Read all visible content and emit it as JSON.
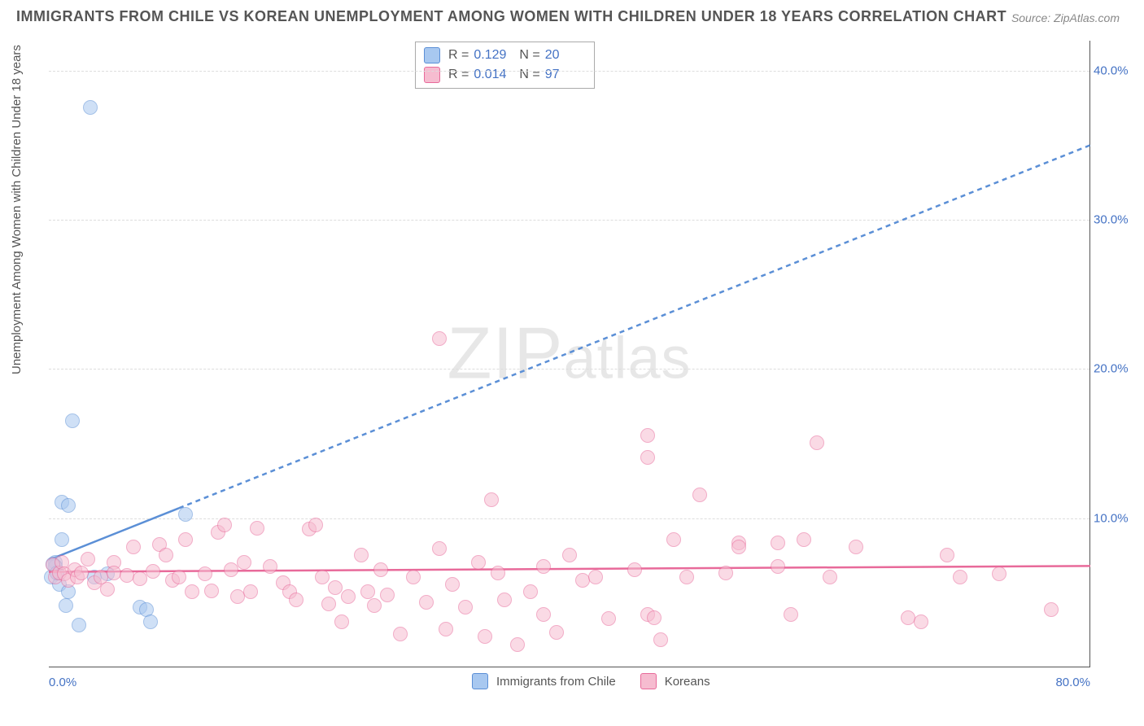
{
  "title": "IMMIGRANTS FROM CHILE VS KOREAN UNEMPLOYMENT AMONG WOMEN WITH CHILDREN UNDER 18 YEARS CORRELATION CHART",
  "source": "Source: ZipAtlas.com",
  "yaxis_label": "Unemployment Among Women with Children Under 18 years",
  "watermark": "ZIPatlas",
  "chart": {
    "type": "scatter",
    "xlim": [
      0,
      80
    ],
    "ylim": [
      0,
      42
    ],
    "xtick_labels": [
      "0.0%",
      "80.0%"
    ],
    "ytick_values": [
      10,
      20,
      30,
      40
    ],
    "ytick_labels": [
      "10.0%",
      "20.0%",
      "30.0%",
      "40.0%"
    ],
    "background_color": "#ffffff",
    "grid_color": "#dddddd",
    "axis_color": "#555555",
    "tick_label_color": "#4472c4",
    "marker_radius": 9,
    "marker_opacity": 0.55,
    "marker_border_width": 1.5,
    "series": [
      {
        "name": "Immigrants from Chile",
        "fill_color": "#a8c8f0",
        "border_color": "#5b8fd6",
        "R": "0.129",
        "N": "20",
        "trend": {
          "x0": 0,
          "y0": 7.2,
          "x1": 80,
          "y1": 35.0,
          "solid_until_x": 10,
          "line_width": 2.5,
          "dash": "6 5"
        },
        "points": [
          {
            "x": 3.2,
            "y": 37.5
          },
          {
            "x": 1.8,
            "y": 16.5
          },
          {
            "x": 1.0,
            "y": 11.0
          },
          {
            "x": 1.5,
            "y": 10.8
          },
          {
            "x": 1.0,
            "y": 8.5
          },
          {
            "x": 0.5,
            "y": 7.0
          },
          {
            "x": 0.5,
            "y": 6.7
          },
          {
            "x": 0.3,
            "y": 6.9
          },
          {
            "x": 0.2,
            "y": 6.0
          },
          {
            "x": 0.8,
            "y": 5.5
          },
          {
            "x": 1.5,
            "y": 5.0
          },
          {
            "x": 1.3,
            "y": 4.1
          },
          {
            "x": 2.3,
            "y": 2.8
          },
          {
            "x": 7.0,
            "y": 4.0
          },
          {
            "x": 7.5,
            "y": 3.8
          },
          {
            "x": 7.8,
            "y": 3.0
          },
          {
            "x": 3.5,
            "y": 6.0
          },
          {
            "x": 4.5,
            "y": 6.2
          },
          {
            "x": 10.5,
            "y": 10.2
          },
          {
            "x": 0.6,
            "y": 6.3
          }
        ]
      },
      {
        "name": "Koreans",
        "fill_color": "#f6bcd0",
        "border_color": "#e86a9a",
        "R": "0.014",
        "N": "97",
        "trend": {
          "x0": 0,
          "y0": 6.4,
          "x1": 80,
          "y1": 6.8,
          "solid_until_x": 80,
          "line_width": 2.5,
          "dash": ""
        },
        "points": [
          {
            "x": 0.3,
            "y": 6.8
          },
          {
            "x": 0.5,
            "y": 6.0
          },
          {
            "x": 0.8,
            "y": 6.3
          },
          {
            "x": 1.0,
            "y": 7.0
          },
          {
            "x": 1.2,
            "y": 6.2
          },
          {
            "x": 1.5,
            "y": 5.8
          },
          {
            "x": 2.0,
            "y": 6.5
          },
          {
            "x": 2.2,
            "y": 6.0
          },
          {
            "x": 2.5,
            "y": 6.3
          },
          {
            "x": 3.0,
            "y": 7.2
          },
          {
            "x": 3.5,
            "y": 5.6
          },
          {
            "x": 4.0,
            "y": 6.0
          },
          {
            "x": 4.5,
            "y": 5.2
          },
          {
            "x": 5.0,
            "y": 7.0
          },
          {
            "x": 5.0,
            "y": 6.3
          },
          {
            "x": 6.0,
            "y": 6.1
          },
          {
            "x": 6.5,
            "y": 8.0
          },
          {
            "x": 7.0,
            "y": 5.9
          },
          {
            "x": 8.0,
            "y": 6.4
          },
          {
            "x": 8.5,
            "y": 8.2
          },
          {
            "x": 9.0,
            "y": 7.5
          },
          {
            "x": 9.5,
            "y": 5.8
          },
          {
            "x": 10.0,
            "y": 6.0
          },
          {
            "x": 10.5,
            "y": 8.5
          },
          {
            "x": 11.0,
            "y": 5.0
          },
          {
            "x": 12.0,
            "y": 6.2
          },
          {
            "x": 12.5,
            "y": 5.1
          },
          {
            "x": 13.0,
            "y": 9.0
          },
          {
            "x": 13.5,
            "y": 9.5
          },
          {
            "x": 14.0,
            "y": 6.5
          },
          {
            "x": 14.5,
            "y": 4.7
          },
          {
            "x": 15.0,
            "y": 7.0
          },
          {
            "x": 15.5,
            "y": 5.0
          },
          {
            "x": 16.0,
            "y": 9.3
          },
          {
            "x": 17.0,
            "y": 6.7
          },
          {
            "x": 18.0,
            "y": 5.6
          },
          {
            "x": 18.5,
            "y": 5.0
          },
          {
            "x": 19.0,
            "y": 4.5
          },
          {
            "x": 20.0,
            "y": 9.2
          },
          {
            "x": 20.5,
            "y": 9.5
          },
          {
            "x": 21.0,
            "y": 6.0
          },
          {
            "x": 21.5,
            "y": 4.2
          },
          {
            "x": 22.0,
            "y": 5.3
          },
          {
            "x": 22.5,
            "y": 3.0
          },
          {
            "x": 23.0,
            "y": 4.7
          },
          {
            "x": 24.0,
            "y": 7.5
          },
          {
            "x": 24.5,
            "y": 5.0
          },
          {
            "x": 25.0,
            "y": 4.1
          },
          {
            "x": 25.5,
            "y": 6.5
          },
          {
            "x": 26.0,
            "y": 4.8
          },
          {
            "x": 27.0,
            "y": 2.2
          },
          {
            "x": 28.0,
            "y": 6.0
          },
          {
            "x": 29.0,
            "y": 4.3
          },
          {
            "x": 30.0,
            "y": 22.0
          },
          {
            "x": 30.0,
            "y": 7.9
          },
          {
            "x": 30.5,
            "y": 2.5
          },
          {
            "x": 31.0,
            "y": 5.5
          },
          {
            "x": 32.0,
            "y": 4.0
          },
          {
            "x": 33.0,
            "y": 7.0
          },
          {
            "x": 33.5,
            "y": 2.0
          },
          {
            "x": 34.0,
            "y": 11.2
          },
          {
            "x": 34.5,
            "y": 6.3
          },
          {
            "x": 35.0,
            "y": 4.5
          },
          {
            "x": 36.0,
            "y": 1.5
          },
          {
            "x": 37.0,
            "y": 5.0
          },
          {
            "x": 38.0,
            "y": 3.5
          },
          {
            "x": 38.0,
            "y": 6.7
          },
          {
            "x": 39.0,
            "y": 2.3
          },
          {
            "x": 40.0,
            "y": 7.5
          },
          {
            "x": 41.0,
            "y": 5.8
          },
          {
            "x": 42.0,
            "y": 6.0
          },
          {
            "x": 43.0,
            "y": 3.2
          },
          {
            "x": 45.0,
            "y": 6.5
          },
          {
            "x": 46.0,
            "y": 15.5
          },
          {
            "x": 46.0,
            "y": 14.0
          },
          {
            "x": 46.0,
            "y": 3.5
          },
          {
            "x": 46.5,
            "y": 3.3
          },
          {
            "x": 47.0,
            "y": 1.8
          },
          {
            "x": 48.0,
            "y": 8.5
          },
          {
            "x": 49.0,
            "y": 6.0
          },
          {
            "x": 50.0,
            "y": 11.5
          },
          {
            "x": 52.0,
            "y": 6.3
          },
          {
            "x": 53.0,
            "y": 8.3
          },
          {
            "x": 53.0,
            "y": 8.0
          },
          {
            "x": 56.0,
            "y": 6.7
          },
          {
            "x": 56.0,
            "y": 8.3
          },
          {
            "x": 57.0,
            "y": 3.5
          },
          {
            "x": 58.0,
            "y": 8.5
          },
          {
            "x": 59.0,
            "y": 15.0
          },
          {
            "x": 60.0,
            "y": 6.0
          },
          {
            "x": 62.0,
            "y": 8.0
          },
          {
            "x": 66.0,
            "y": 3.3
          },
          {
            "x": 67.0,
            "y": 3.0
          },
          {
            "x": 69.0,
            "y": 7.5
          },
          {
            "x": 73.0,
            "y": 6.2
          },
          {
            "x": 77.0,
            "y": 3.8
          },
          {
            "x": 70.0,
            "y": 6.0
          }
        ]
      }
    ]
  },
  "legend_items": [
    "Immigrants from Chile",
    "Koreans"
  ]
}
